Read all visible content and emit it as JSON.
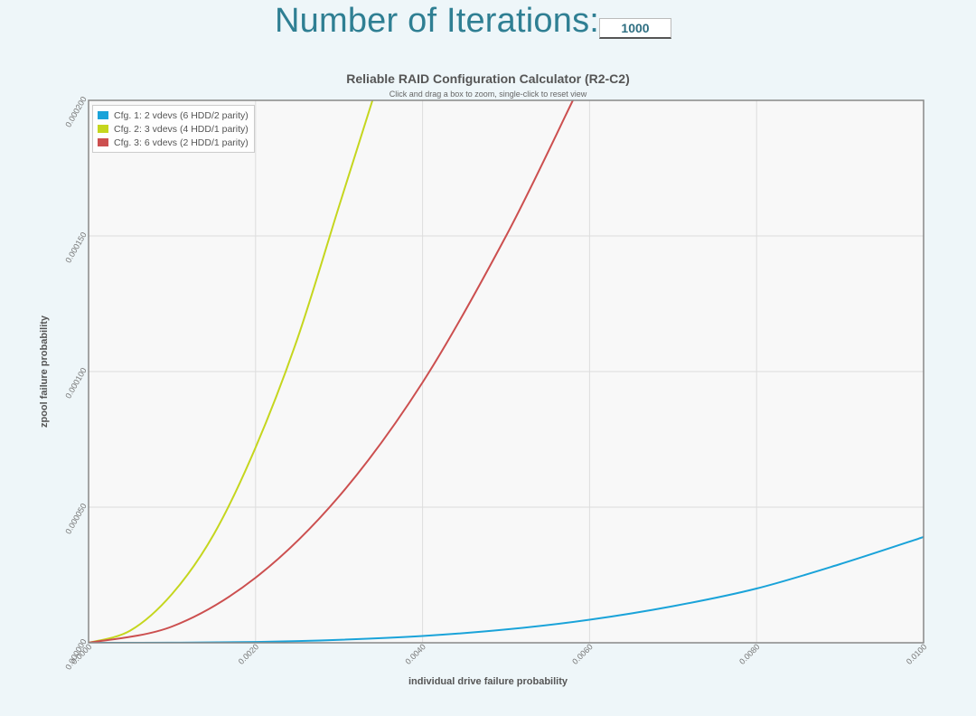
{
  "iterations": {
    "label": "Number of Iterations:",
    "value": "1000"
  },
  "colors": {
    "cfg1": "#1aa3d9",
    "cfg2": "#c5d61e",
    "cfg3": "#cc4f4f",
    "plot_bg": "#f8f8f8",
    "grid": "#dddddd",
    "frame": "#888888"
  },
  "chart_data": {
    "type": "line",
    "title": "Reliable RAID Configuration Calculator (R2-C2)",
    "subtitle": "Click and drag a box to zoom, single-click to reset view",
    "xlabel": "individual drive failure probability",
    "ylabel": "zpool failure probability",
    "xlim": [
      0,
      0.01
    ],
    "ylim": [
      0,
      0.0002
    ],
    "x_ticks": [
      "0.0000",
      "0.0020",
      "0.0040",
      "0.0060",
      "0.0080",
      "0.0100"
    ],
    "y_ticks": [
      "0.000000",
      "0.000050",
      "0.000100",
      "0.000150",
      "0.000200"
    ],
    "grid": true,
    "legend_position": "top-left",
    "series": [
      {
        "name": "Cfg. 1: 2 vdevs (6 HDD/2 parity)",
        "color_key": "cfg1",
        "x": [
          0,
          0.001,
          0.002,
          0.003,
          0.004,
          0.005,
          0.006,
          0.007,
          0.008,
          0.009,
          0.01
        ],
        "y": [
          0,
          4e-08,
          3e-07,
          1.1e-06,
          2.5e-06,
          4.9e-06,
          8.5e-06,
          1.35e-05,
          2e-05,
          2.9e-05,
          3.9e-05
        ]
      },
      {
        "name": "Cfg. 2: 3 vdevs (4 HDD/1 parity)",
        "color_key": "cfg2",
        "x": [
          0,
          0.0005,
          0.001,
          0.0015,
          0.002,
          0.0025,
          0.003,
          0.0034
        ],
        "y": [
          0,
          4.5e-06,
          1.8e-05,
          4e-05,
          7.2e-05,
          0.000112,
          0.000161,
          0.0002
        ]
      },
      {
        "name": "Cfg. 3: 6 vdevs (2 HDD/1 parity)",
        "color_key": "cfg3",
        "x": [
          0,
          0.001,
          0.002,
          0.003,
          0.004,
          0.005,
          0.0058
        ],
        "y": [
          0,
          6e-06,
          2.4e-05,
          5.4e-05,
          9.6e-05,
          0.00015,
          0.0002
        ]
      }
    ]
  }
}
